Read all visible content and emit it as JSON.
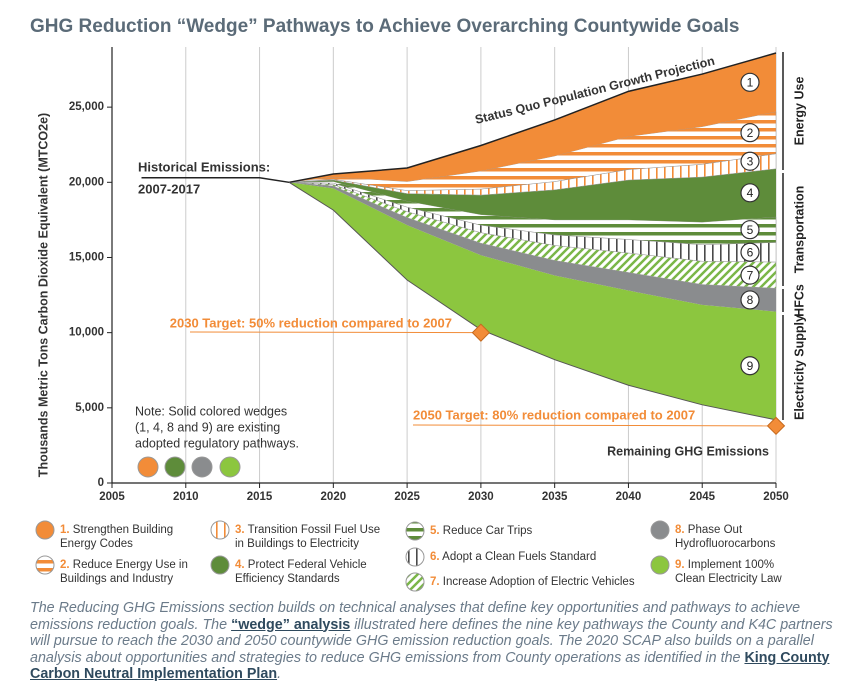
{
  "chart_data": {
    "type": "stacked-area",
    "title": "GHG Reduction “Wedge” Pathways to Achieve Overarching Countywide Goals",
    "y_label": "Thousands Metric Tons Carbon Dioxide Equivalent (MTCO2e)",
    "xlim": [
      2005,
      2050
    ],
    "xticks": [
      2005,
      2010,
      2015,
      2020,
      2025,
      2030,
      2035,
      2040,
      2045,
      2050
    ],
    "ylim": [
      0,
      29000
    ],
    "yticks": [
      0,
      {
        "value": 5000,
        "label": "5,000"
      },
      {
        "value": 10000,
        "label": "10,000"
      },
      {
        "value": 15000,
        "label": "15,000"
      },
      {
        "value": 20000,
        "label": "20,000"
      },
      {
        "value": 25000,
        "label": "25,000"
      }
    ],
    "grid": true,
    "x": [
      2017,
      2020,
      2025,
      2030,
      2035,
      2040,
      2045,
      2050
    ],
    "baseline": {
      "name": "Remaining GHG Emissions",
      "values": [
        20000,
        18150,
        13500,
        10200,
        8200,
        6500,
        5200,
        4200
      ]
    },
    "series": [
      {
        "marker": "1",
        "number": "1.",
        "name": "Strengthen Building Energy Codes",
        "color": "#f28c38",
        "pattern": "solid",
        "values": [
          0,
          200,
          900,
          1700,
          2400,
          3000,
          3500,
          3900
        ]
      },
      {
        "marker": "2",
        "number": "2.",
        "name": "Reduce Energy Use in Buildings and Industry",
        "color": "#f28c38",
        "pattern": "horizontal",
        "values": [
          0,
          150,
          600,
          1200,
          1700,
          2200,
          2500,
          2800
        ]
      },
      {
        "marker": "3",
        "number": "3.",
        "name": "Transition Fossil Fuel Use in Buildings to Electricity",
        "color": "#f28c38",
        "pattern": "vertical",
        "values": [
          0,
          50,
          200,
          400,
          550,
          700,
          850,
          1000
        ]
      },
      {
        "marker": "4",
        "number": "4.",
        "name": "Protect Federal Vehicle Efficiency Standards",
        "color": "#5e8c3a",
        "pattern": "solid",
        "values": [
          0,
          100,
          500,
          1300,
          2000,
          2650,
          3000,
          3200
        ]
      },
      {
        "marker": "5",
        "number": "5.",
        "name": "Reduce Car Trips",
        "color": "#5e8c3a",
        "pattern": "horizontal",
        "values": [
          0,
          100,
          400,
          700,
          1000,
          1300,
          1500,
          1700
        ]
      },
      {
        "marker": "6",
        "number": "6.",
        "name": "Adopt a Clean Fuels Standard",
        "color": "#4a4a4a",
        "pattern": "vertical",
        "values": [
          0,
          100,
          300,
          500,
          700,
          900,
          1100,
          1300
        ]
      },
      {
        "marker": "7",
        "number": "7.",
        "name": "Increase Adoption of Electric Vehicles",
        "color": "#7ab648",
        "pattern": "diagonal",
        "values": [
          0,
          100,
          400,
          700,
          1000,
          1300,
          1550,
          1750
        ]
      },
      {
        "marker": "8",
        "number": "8.",
        "name": "Phase Out Hydrofluorocarbons",
        "color": "#8a8c8e",
        "pattern": "solid",
        "values": [
          0,
          150,
          500,
          800,
          1000,
          1200,
          1350,
          1550
        ]
      },
      {
        "marker": "9",
        "number": "9.",
        "name": "Implement 100% Clean Electricity Law",
        "color": "#8cc63f",
        "pattern": "solid",
        "values": [
          0,
          1450,
          3650,
          4950,
          5600,
          6300,
          6650,
          7200
        ]
      }
    ],
    "historical": {
      "label_lines": [
        "Historical Emissions:",
        "2007-2017"
      ],
      "x": [
        2007,
        2015,
        2017
      ],
      "values": [
        20300,
        20300,
        20000
      ]
    },
    "status_quo_label": "Status Quo Population Growth Projection",
    "targets": [
      {
        "label": "2030 Target: 50% reduction compared to 2007",
        "x": 2030,
        "value": 10000
      },
      {
        "label": "2050 Target: 80% reduction compared to 2007",
        "x": 2050,
        "value": 3800
      }
    ],
    "sectors": [
      "Energy Use",
      "Transportation",
      "HFCs",
      "Electricity Supply"
    ],
    "note_lines": [
      "Note: Solid colored wedges",
      "(1, 4, 8 and 9) are existing",
      "adopted regulatory pathways."
    ]
  },
  "caption": [
    {
      "text": "The Reducing GHG Emissions section builds on technical analyses that define key opportunities and pathways to achieve emissions reduction goals. The "
    },
    {
      "text": "“wedge” analysis",
      "link": true
    },
    {
      "text": " illustrated here defines the nine key pathways the County and K4C partners will pursue to reach the 2030 and 2050 countywide GHG emission reduction goals. The 2020 SCAP also builds on a parallel analysis about opportunities and strategies to reduce GHG emissions from County operations as identified in the "
    },
    {
      "text": "King County Carbon Neutral Implementation Plan",
      "link": true
    },
    {
      "text": "."
    }
  ]
}
